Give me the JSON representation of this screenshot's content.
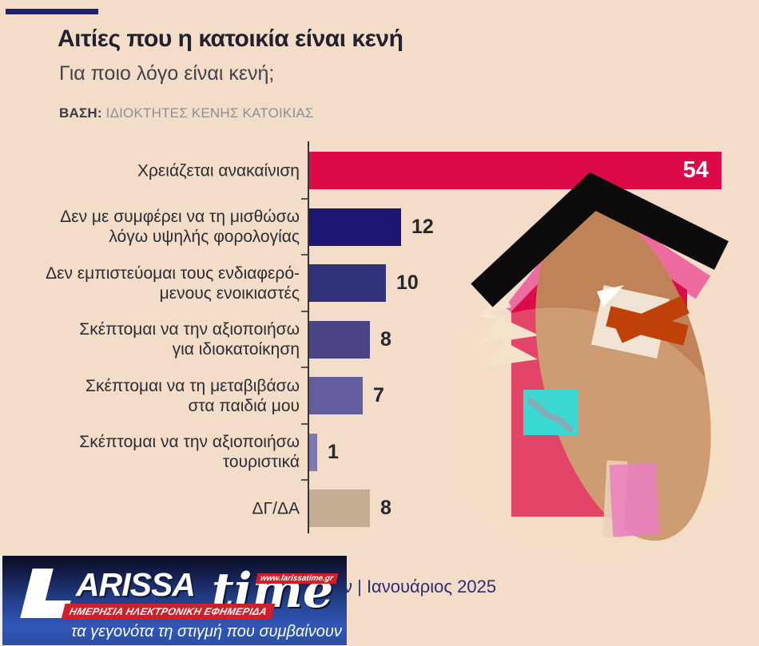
{
  "page": {
    "background": "#f3ddc9",
    "accent_bar_color": "#1d2273"
  },
  "header": {
    "title": "Αιτίες που η κατοικία είναι κενή",
    "subtitle": "Για ποιο λόγο είναι κενή;",
    "base_label": "ΒΑΣΗ:",
    "base_value": "ΙΔΙΟΚΤΗΤΕΣ ΚΕΝΗΣ ΚΑΤΟΙΚΙΑΣ"
  },
  "chart_data": {
    "type": "bar",
    "orientation": "horizontal",
    "title": "Αιτίες που η κατοικία είναι κενή",
    "xlabel": "",
    "ylabel": "",
    "xlim": [
      0,
      56
    ],
    "grid": false,
    "legend": false,
    "categories": [
      "Χρειάζεται ανακαίνιση",
      "Δεν με συμφέρει να τη μισθώσω λόγω υψηλής φορολογίας",
      "Δεν εμπιστεύομαι τους ενδιαφερόμενους ενοικιαστές",
      "Σκέπτομαι να την αξιοποιήσω για ιδιοκατοίκηση",
      "Σκέπτομαι να τη μεταβιβάσω στα παιδιά μου",
      "Σκέπτομαι να την αξιοποιήσω τουριστικά",
      "ΔΓ/ΔΑ"
    ],
    "label_lines": [
      [
        "Χρειάζεται ανακαίνιση"
      ],
      [
        "Δεν με συμφέρει να τη μισθώσω",
        "λόγω υψηλής φορολογίας"
      ],
      [
        "Δεν εμπιστεύομαι τους ενδιαφερό-",
        "μενους ενοικιαστές"
      ],
      [
        "Σκέπτομαι να την αξιοποιήσω",
        "για ιδιοκατοίκηση"
      ],
      [
        "Σκέπτομαι να τη μεταβιβάσω",
        "στα παιδιά μου"
      ],
      [
        "Σκέπτομαι να την αξιοποιήσω",
        "τουριστικά"
      ],
      [
        "ΔΓ/ΔΑ"
      ]
    ],
    "values": [
      54,
      12,
      10,
      8,
      7,
      1,
      8
    ],
    "bar_colors": [
      "#dc0a47",
      "#1c1673",
      "#31307a",
      "#484486",
      "#635e9e",
      "#7d78b0",
      "#c4ad92"
    ],
    "value_inside": [
      true,
      false,
      false,
      false,
      false,
      false,
      false
    ],
    "value_color_outside": "#26262e",
    "value_color_inside": "#ffffff"
  },
  "illustration": {
    "name": "abstract-house",
    "roof_color": "#0d0b0b",
    "roof_trim_color": "#ee6ba0",
    "body_color": "#dc0a47",
    "oval_color": "#c08358",
    "zigzag_color": "#f6e4d0",
    "paper_color": "#f3e8da",
    "bowtie_color": "#c04107",
    "window_color": "#3cd8d2",
    "door_color": "#ec7fc1"
  },
  "footer": {
    "caption_visible": "ν | Ιανουάριος 2025",
    "logo": {
      "big_letter": "L",
      "wordmark_main": "ARISSA",
      "wordmark_script": "time",
      "url_badge": "www.larissatime.gr",
      "red_banner": "ΗΜΕΡΗΣΙΑ ΗΛΕΚΤΡΟΝΙΚΗ ΕΦΗΜΕΡΙΔΑ",
      "slogan": "τα γεγονότα τη στιγμή που συμβαίνουν",
      "red": "#d01f28"
    }
  }
}
